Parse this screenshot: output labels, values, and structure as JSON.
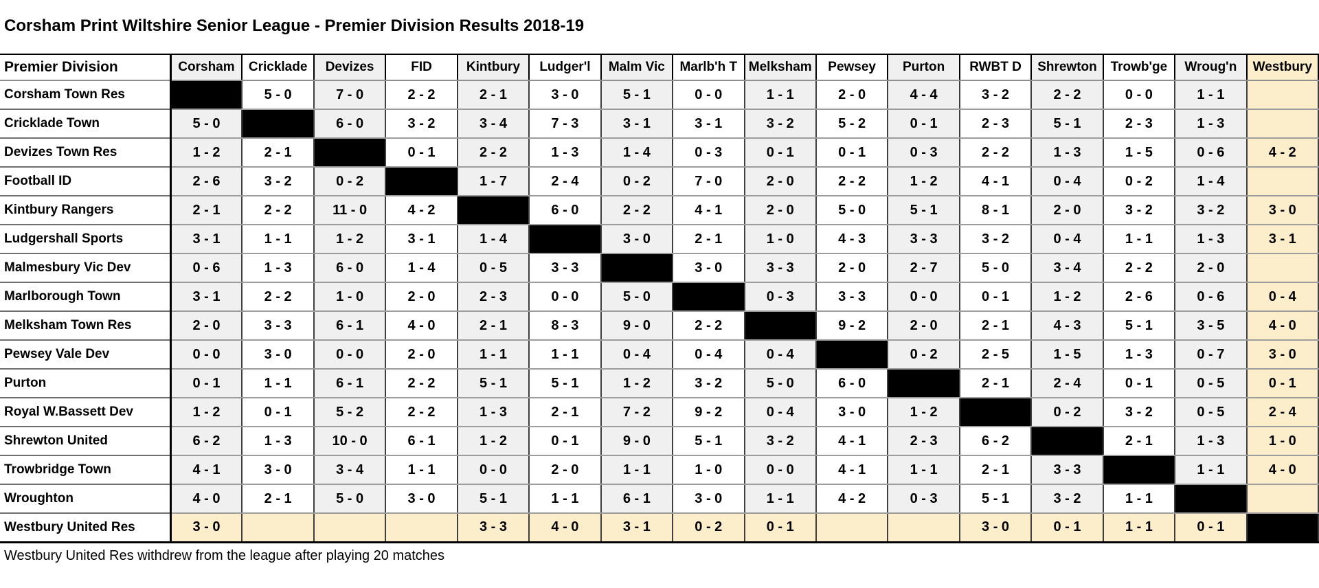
{
  "title": "Corsham Print Wiltshire Senior League - Premier Division Results 2018-19",
  "footnote": "Westbury United Res withdrew from the league after playing 20 matches",
  "colors": {
    "column_stripe": "#f0f0f0",
    "highlight": "#fceecb",
    "diagonal_black": "#000000"
  },
  "table": {
    "corner_label": "Premier Division",
    "highlighted_column": "Westbury",
    "highlighted_row": "Westbury United Res",
    "columns": [
      "Corsham",
      "Cricklade",
      "Devizes",
      "FID",
      "Kintbury",
      "Ludger'l",
      "Malm Vic",
      "Marlb'h T",
      "Melksham",
      "Pewsey",
      "Purton",
      "RWBT D",
      "Shrewton",
      "Trowb'ge",
      "Wroug'n",
      "Westbury"
    ],
    "rows": [
      {
        "team": "Corsham Town Res",
        "scores": [
          null,
          "5 - 0",
          "7 - 0",
          "2 - 2",
          "2 - 1",
          "3 - 0",
          "5 - 1",
          "0 - 0",
          "1 - 1",
          "2 - 0",
          "4 - 4",
          "3 - 2",
          "2 - 2",
          "0 - 0",
          "1 - 1",
          ""
        ]
      },
      {
        "team": "Cricklade Town",
        "scores": [
          "5 - 0",
          null,
          "6 - 0",
          "3 - 2",
          "3 - 4",
          "7 - 3",
          "3 - 1",
          "3 - 1",
          "3 - 2",
          "5 - 2",
          "0 - 1",
          "2 - 3",
          "5 - 1",
          "2 - 3",
          "1 - 3",
          ""
        ]
      },
      {
        "team": "Devizes Town Res",
        "scores": [
          "1 - 2",
          "2 - 1",
          null,
          "0 - 1",
          "2 - 2",
          "1 - 3",
          "1 - 4",
          "0 - 3",
          "0 - 1",
          "0 - 1",
          "0 - 3",
          "2 - 2",
          "1 - 3",
          "1 - 5",
          "0 - 6",
          "4 - 2"
        ]
      },
      {
        "team": "Football ID",
        "scores": [
          "2 - 6",
          "3 - 2",
          "0 - 2",
          null,
          "1 - 7",
          "2 - 4",
          "0 - 2",
          "7 - 0",
          "2 - 0",
          "2 - 2",
          "1 - 2",
          "4 - 1",
          "0 - 4",
          "0 - 2",
          "1 - 4",
          ""
        ]
      },
      {
        "team": "Kintbury Rangers",
        "scores": [
          "2 - 1",
          "2 - 2",
          "11 - 0",
          "4 - 2",
          null,
          "6 - 0",
          "2 - 2",
          "4 - 1",
          "2 - 0",
          "5 - 0",
          "5 - 1",
          "8 - 1",
          "2 - 0",
          "3 - 2",
          "3 - 2",
          "3 - 0"
        ]
      },
      {
        "team": "Ludgershall Sports",
        "scores": [
          "3 - 1",
          "1 - 1",
          "1 - 2",
          "3 - 1",
          "1 - 4",
          null,
          "3 - 0",
          "2 - 1",
          "1 - 0",
          "4 - 3",
          "3 - 3",
          "3 - 2",
          "0 - 4",
          "1 - 1",
          "1 - 3",
          "3 - 1"
        ]
      },
      {
        "team": "Malmesbury Vic Dev",
        "scores": [
          "0 - 6",
          "1 - 3",
          "6 - 0",
          "1 - 4",
          "0 - 5",
          "3 - 3",
          null,
          "3 - 0",
          "3 - 3",
          "2 - 0",
          "2 - 7",
          "5 - 0",
          "3 - 4",
          "2 - 2",
          "2 - 0",
          ""
        ]
      },
      {
        "team": "Marlborough Town",
        "scores": [
          "3 - 1",
          "2 - 2",
          "1 - 0",
          "2 - 0",
          "2 - 3",
          "0 - 0",
          "5 - 0",
          null,
          "0 - 3",
          "3 - 3",
          "0 - 0",
          "0 - 1",
          "1 - 2",
          "2 - 6",
          "0 - 6",
          "0 - 4"
        ]
      },
      {
        "team": "Melksham Town Res",
        "scores": [
          "2 - 0",
          "3 - 3",
          "6 - 1",
          "4 - 0",
          "2 - 1",
          "8 - 3",
          "9 - 0",
          "2 - 2",
          null,
          "9 - 2",
          "2 - 0",
          "2 - 1",
          "4 - 3",
          "5 - 1",
          "3 - 5",
          "4 - 0"
        ]
      },
      {
        "team": "Pewsey Vale Dev",
        "scores": [
          "0 - 0",
          "3 - 0",
          "0 - 0",
          "2 - 0",
          "1 - 1",
          "1 - 1",
          "0 - 4",
          "0 - 4",
          "0 - 4",
          null,
          "0 - 2",
          "2 - 5",
          "1 - 5",
          "1 - 3",
          "0 - 7",
          "3 - 0"
        ]
      },
      {
        "team": "Purton",
        "scores": [
          "0 - 1",
          "1 - 1",
          "6 - 1",
          "2 - 2",
          "5 - 1",
          "5 - 1",
          "1 - 2",
          "3 - 2",
          "5 - 0",
          "6 - 0",
          null,
          "2 - 1",
          "2 - 4",
          "0 - 1",
          "0 - 5",
          "0 - 1"
        ]
      },
      {
        "team": "Royal W.Bassett Dev",
        "scores": [
          "1 - 2",
          "0 - 1",
          "5 - 2",
          "2 - 2",
          "1 - 3",
          "2 - 1",
          "7 - 2",
          "9 - 2",
          "0 - 4",
          "3 - 0",
          "1 - 2",
          null,
          "0 - 2",
          "3 - 2",
          "0 - 5",
          "2 - 4"
        ]
      },
      {
        "team": "Shrewton United",
        "scores": [
          "6 - 2",
          "1 - 3",
          "10 - 0",
          "6 - 1",
          "1 - 2",
          "0 - 1",
          "9 - 0",
          "5 - 1",
          "3 - 2",
          "4 - 1",
          "2 - 3",
          "6 - 2",
          null,
          "2 - 1",
          "1 - 3",
          "1 - 0"
        ]
      },
      {
        "team": "Trowbridge Town",
        "scores": [
          "4 - 1",
          "3 - 0",
          "3 - 4",
          "1 - 1",
          "0 - 0",
          "2 - 0",
          "1 - 1",
          "1 - 0",
          "0 - 0",
          "4 - 1",
          "1 - 1",
          "2 - 1",
          "3 - 3",
          null,
          "1 - 1",
          "4 - 0"
        ]
      },
      {
        "team": "Wroughton",
        "scores": [
          "4 - 0",
          "2 - 1",
          "5 - 0",
          "3 - 0",
          "5 - 1",
          "1 - 1",
          "6 - 1",
          "3 - 0",
          "1 - 1",
          "4 - 2",
          "0 - 3",
          "5 - 1",
          "3 - 2",
          "1 - 1",
          null,
          ""
        ]
      },
      {
        "team": "Westbury United Res",
        "scores": [
          "3 - 0",
          "",
          "",
          "",
          "3 - 3",
          "4 - 0",
          "3 - 1",
          "0 - 2",
          "0 - 1",
          "",
          "",
          "3 - 0",
          "0 - 1",
          "1 - 1",
          "0 - 1",
          null
        ]
      }
    ]
  }
}
